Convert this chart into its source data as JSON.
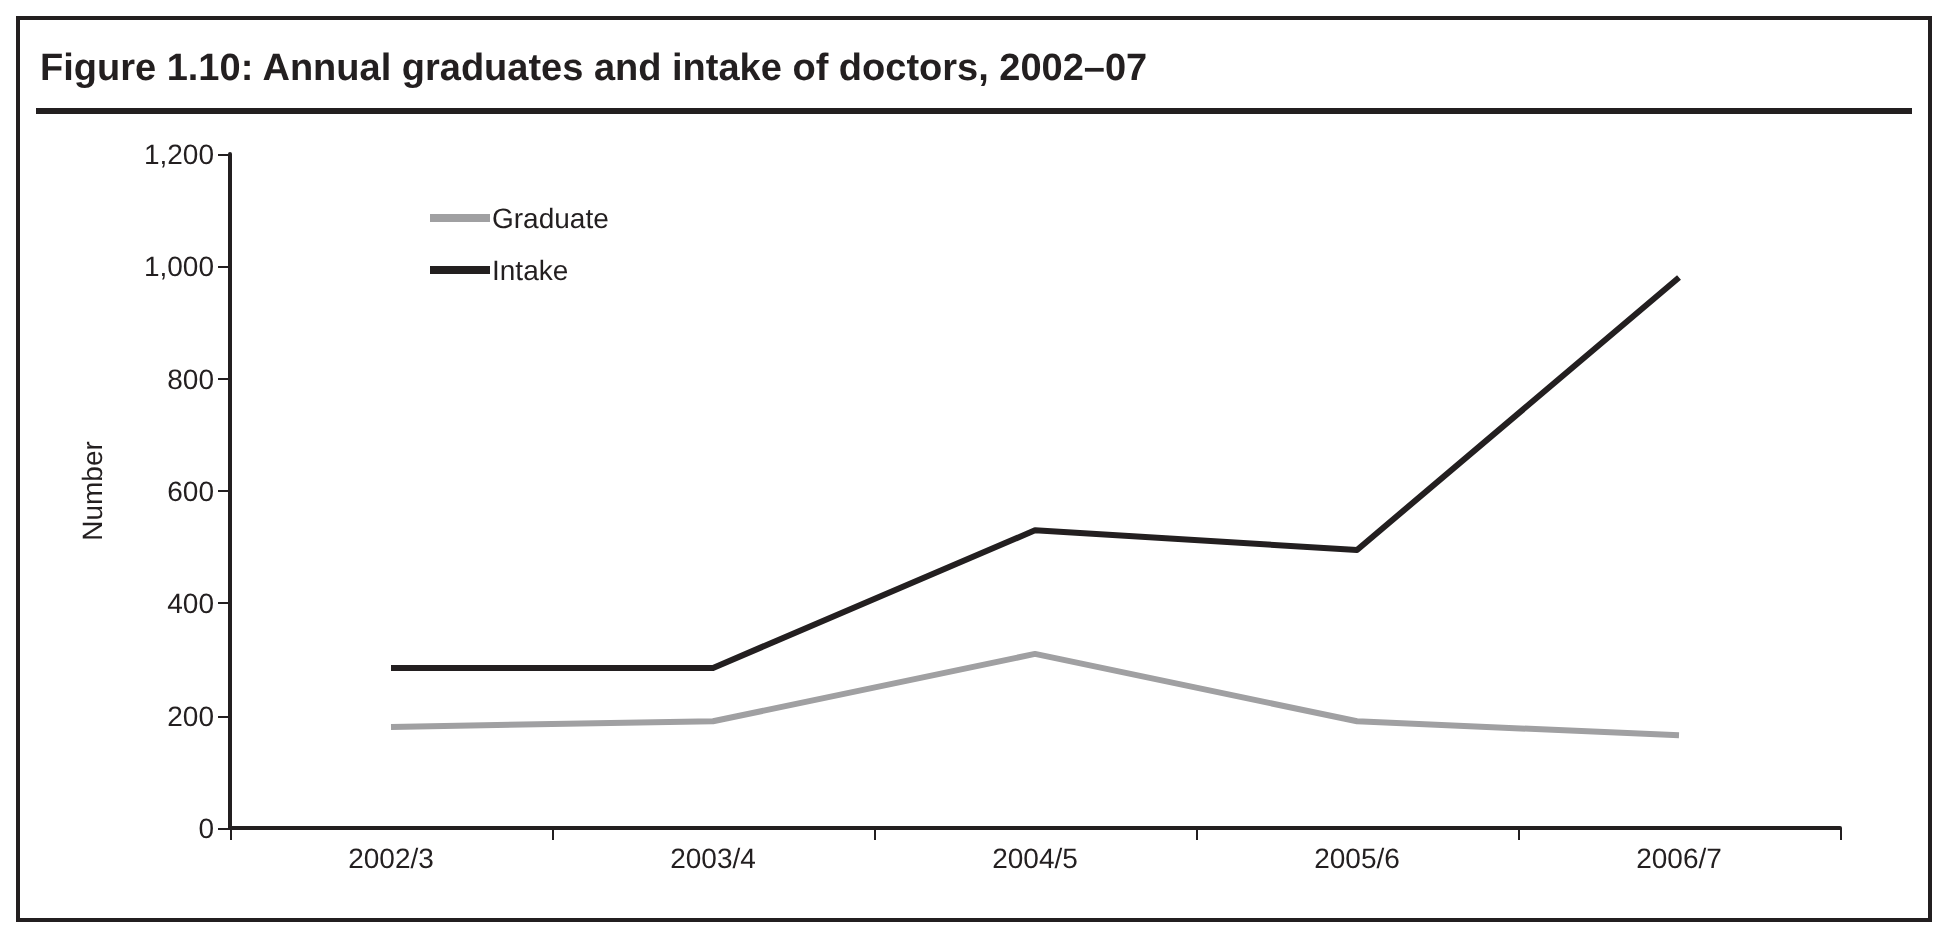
{
  "chart_data": {
    "type": "line",
    "title": "Figure 1.10: Annual graduates and intake of doctors, 2002–07",
    "ylabel": "Number",
    "categories": [
      "2002/3",
      "2003/4",
      "2004/5",
      "2005/6",
      "2006/7"
    ],
    "series": [
      {
        "name": "Graduate",
        "color": "#a0a0a2",
        "values": [
          180,
          190,
          310,
          190,
          165
        ]
      },
      {
        "name": "Intake",
        "color": "#231f20",
        "values": [
          285,
          285,
          530,
          495,
          980
        ]
      }
    ],
    "ylim": [
      0,
      1200
    ],
    "yticks": [
      0,
      200,
      400,
      600,
      800,
      {
        "value": 1000,
        "label": "1,000"
      },
      {
        "value": 1200,
        "label": "1,200"
      }
    ],
    "grid": false,
    "legend": "top left",
    "marker": "none",
    "line_style": "solid"
  }
}
